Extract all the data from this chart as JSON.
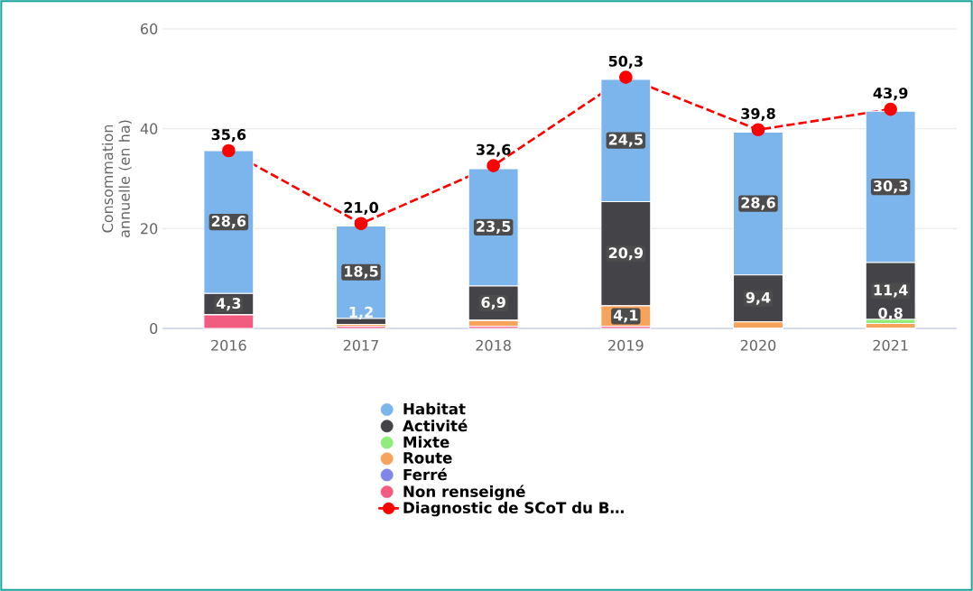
{
  "chart_data": {
    "type": "bar",
    "stacked": true,
    "ylabel": "Consommation annuelle (en ha)",
    "categories": [
      "2016",
      "2017",
      "2018",
      "2019",
      "2020",
      "2021"
    ],
    "series": [
      {
        "name": "Non renseigné",
        "color": "#f15c80",
        "values": [
          2.7,
          0.4,
          0.4,
          0.4,
          0,
          0
        ],
        "value_labels": [
          null,
          null,
          null,
          null,
          null,
          null
        ]
      },
      {
        "name": "Ferré",
        "color": "#8085e9",
        "values": [
          0,
          0,
          0,
          0,
          0,
          0
        ],
        "value_labels": [
          null,
          null,
          null,
          null,
          null,
          null
        ]
      },
      {
        "name": "Route",
        "color": "#f7a35c",
        "values": [
          0,
          0.4,
          1.2,
          4.1,
          1.3,
          1.0
        ],
        "value_labels": [
          null,
          null,
          null,
          "4,1",
          null,
          null
        ]
      },
      {
        "name": "Mixte",
        "color": "#90ed7d",
        "values": [
          0,
          0,
          0,
          0,
          0,
          0.8
        ],
        "value_labels": [
          null,
          null,
          null,
          null,
          null,
          "0,8"
        ]
      },
      {
        "name": "Activité",
        "color": "#434348",
        "values": [
          4.3,
          1.2,
          6.9,
          20.9,
          9.4,
          11.4
        ],
        "value_labels": [
          "4,3",
          "1,2",
          "6,9",
          "20,9",
          "9,4",
          "11,4"
        ]
      },
      {
        "name": "Habitat",
        "color": "#7cb5ec",
        "values": [
          28.6,
          18.5,
          23.5,
          24.5,
          28.6,
          30.3
        ],
        "value_labels": [
          "28,6",
          "18,5",
          "23,5",
          "24,5",
          "28,6",
          "30,3"
        ]
      },
      {
        "name": "Diagnostic de SCoT du B…",
        "type": "line",
        "color": "#ff0000",
        "line_style": "dashed",
        "marker": "circle",
        "values": [
          35.6,
          21.0,
          32.6,
          50.3,
          39.8,
          43.9
        ],
        "value_labels": [
          "35,6",
          "21,0",
          "32,6",
          "50,3",
          "39,8",
          "43,9"
        ]
      }
    ],
    "ylim": [
      0,
      60
    ],
    "yticks": [
      0,
      20,
      40,
      60
    ],
    "grid": "y",
    "legend": "bottom"
  }
}
